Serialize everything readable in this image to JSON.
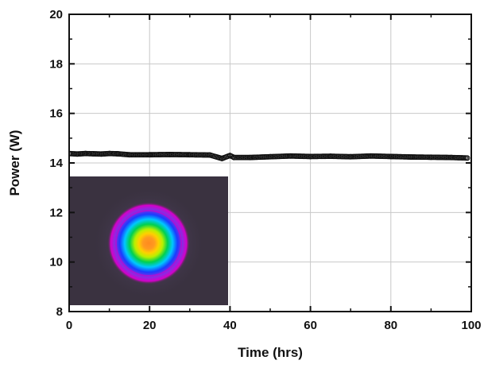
{
  "chart_data": {
    "type": "scatter",
    "xlabel": "Time (hrs)",
    "ylabel": "Power (W)",
    "xlim": [
      0,
      100
    ],
    "ylim": [
      8,
      20
    ],
    "xticks": [
      0,
      20,
      40,
      60,
      80,
      100
    ],
    "yticks": [
      8,
      10,
      12,
      14,
      16,
      18,
      20
    ],
    "grid": true,
    "marker": "open-circle",
    "series": [
      {
        "name": "",
        "x": [
          0,
          2,
          4,
          6,
          8,
          10,
          12,
          15,
          20,
          25,
          30,
          35,
          38,
          40,
          41,
          45,
          50,
          55,
          60,
          65,
          70,
          75,
          80,
          85,
          90,
          95,
          99
        ],
        "y": [
          14.38,
          14.36,
          14.38,
          14.37,
          14.36,
          14.38,
          14.37,
          14.33,
          14.33,
          14.34,
          14.33,
          14.32,
          14.18,
          14.3,
          14.22,
          14.22,
          14.25,
          14.28,
          14.26,
          14.27,
          14.25,
          14.28,
          14.26,
          14.24,
          14.23,
          14.22,
          14.2
        ]
      }
    ],
    "inset": {
      "type": "beam-profile-image",
      "colormap": [
        "#8a0066",
        "#d400c8",
        "#8a2be2",
        "#1a3cff",
        "#00c8ff",
        "#00d050",
        "#b8f000",
        "#ffd000",
        "#ff8a1e"
      ],
      "background": "#3a3240"
    }
  }
}
